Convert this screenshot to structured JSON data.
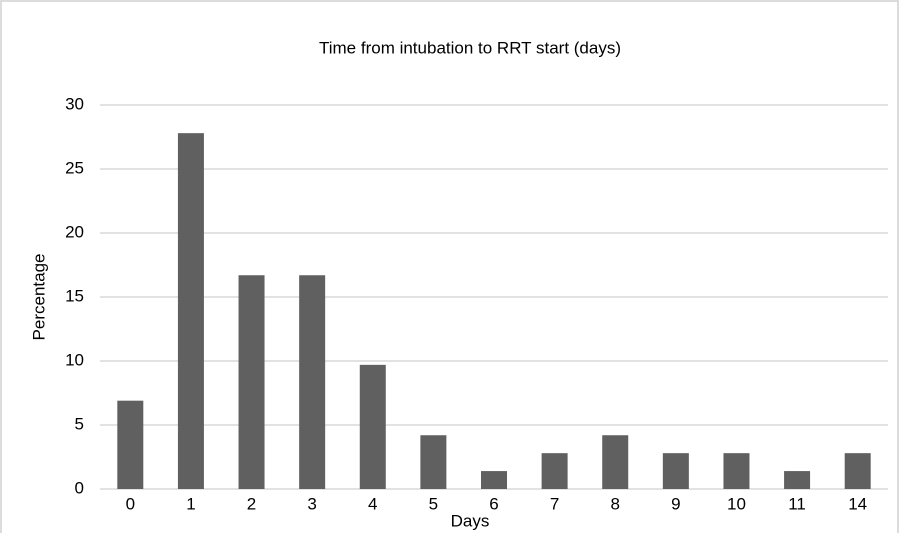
{
  "chart_data": {
    "type": "bar",
    "title": "Time from intubation to RRT start (days)",
    "x_label": "Days",
    "y_label": "Percentage",
    "categories": [
      "0",
      "1",
      "2",
      "3",
      "4",
      "5",
      "6",
      "7",
      "8",
      "9",
      "10",
      "11",
      "14"
    ],
    "values": [
      6.9,
      27.8,
      16.7,
      16.7,
      9.7,
      4.2,
      1.4,
      2.8,
      4.2,
      2.8,
      2.8,
      1.4,
      2.8
    ],
    "color": "#606060",
    "ylim": [
      0,
      30
    ],
    "yticks": [
      0,
      5,
      10,
      15,
      20,
      25,
      30
    ],
    "grid": true
  }
}
